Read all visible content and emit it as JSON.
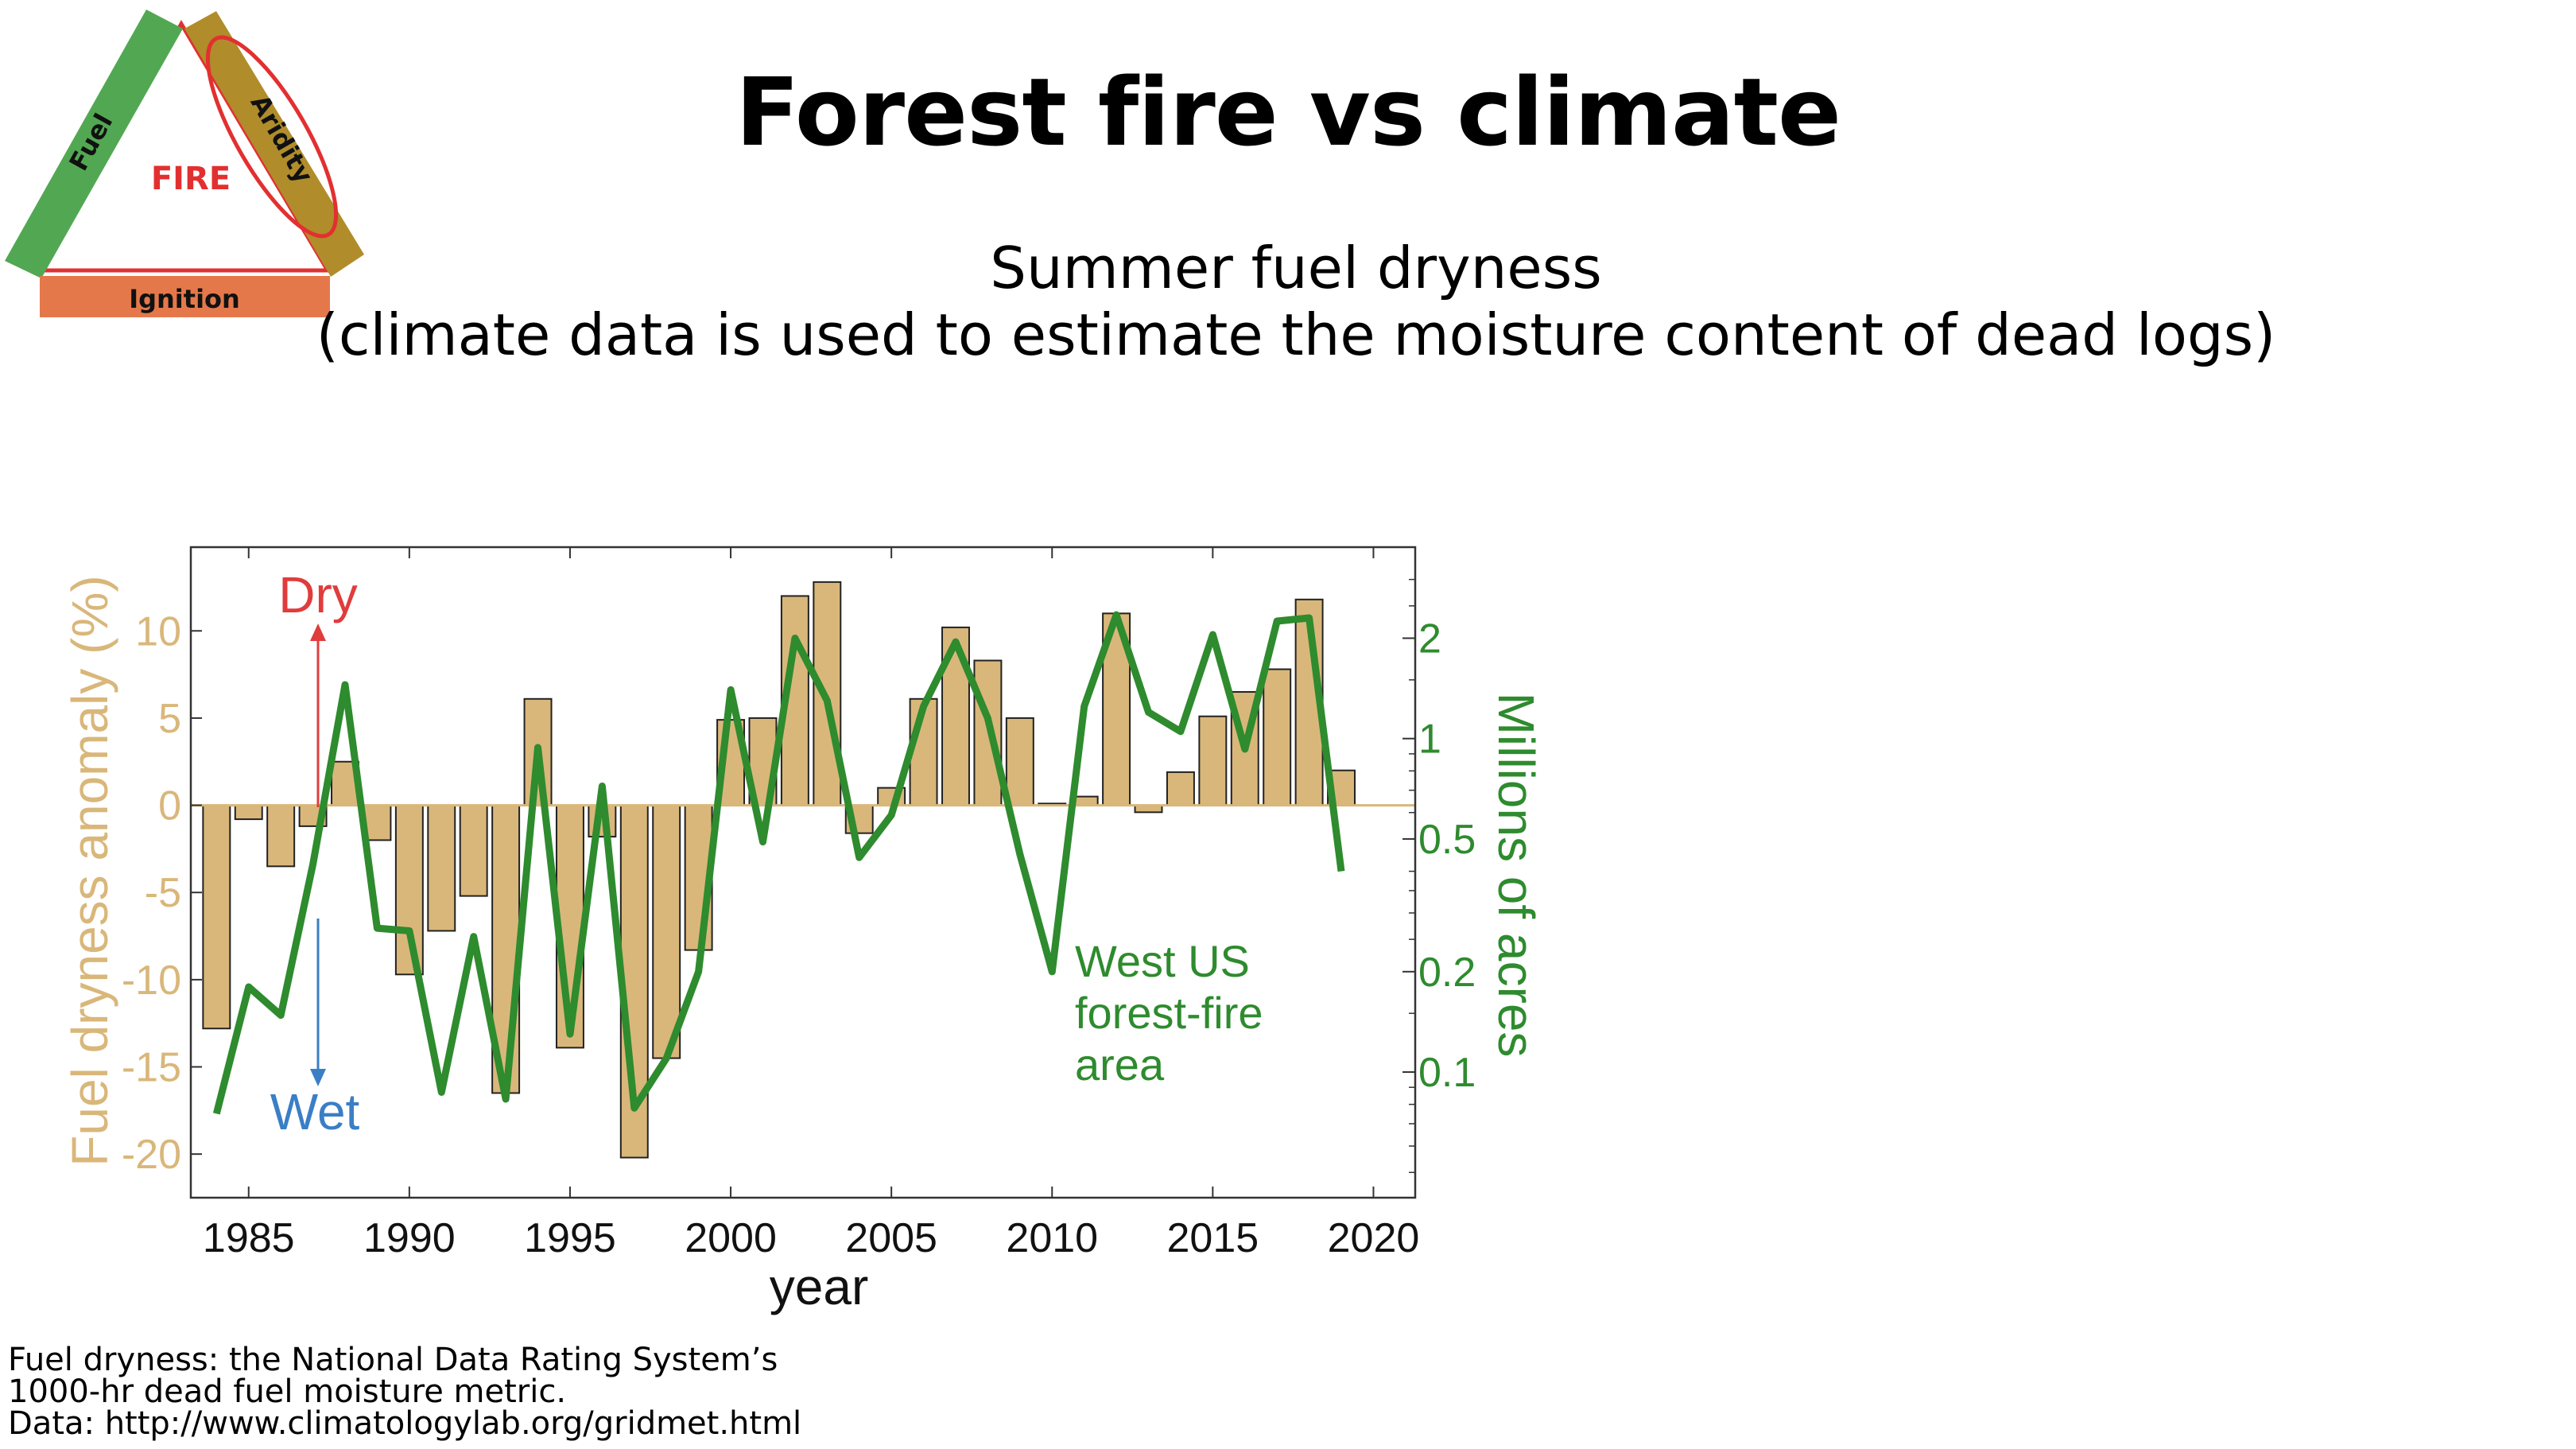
{
  "slide": {
    "title": "Forest fire vs climate",
    "subtitle_line1": "Summer fuel dryness",
    "subtitle_line2": "(climate data is used to estimate the moisture content of dead logs)"
  },
  "fire_triangle": {
    "center_label": "FIRE",
    "left_label": "Fuel",
    "right_label": "Aridity",
    "bottom_label": "Ignition",
    "colors": {
      "fuel": "#52a852",
      "aridity": "#b08d2a",
      "ignition": "#e5784a",
      "fire": "#e23030",
      "circle": "#e23030"
    }
  },
  "annotations": {
    "dry": "Dry",
    "wet": "Wet",
    "fire_area_line1": "West US",
    "fire_area_line2": "forest-fire",
    "fire_area_line3": "area",
    "dry_color": "#e03c3c",
    "wet_color": "#3a7ec6"
  },
  "footnote": {
    "line1": "Fuel dryness: the National Data Rating System’s",
    "line2": "1000-hr dead fuel moisture metric.",
    "line3": "Data: http://www.climatologylab.org/gridmet.html"
  },
  "chart_data": {
    "type": "bar",
    "xlabel": "year",
    "ylabel": "Fuel dryness anomaly (%)",
    "y2label": "Millions of acres",
    "x_ticks": [
      "1985",
      "1990",
      "1995",
      "2000",
      "2005",
      "2010",
      "2015",
      "2020"
    ],
    "y_ticks": [
      "10",
      "5",
      "0",
      "-5",
      "-10",
      "-15",
      "-20"
    ],
    "y2_ticks": [
      "2",
      "1",
      "0.5",
      "0.2",
      "0.1"
    ],
    "xlim": [
      1983.2,
      2021.3
    ],
    "ylim": [
      -22.5,
      14.8
    ],
    "y2lim_log": [
      0.042,
      3.75
    ],
    "y2_scale": "log",
    "bar_color": "#d9b77a",
    "line_color": "#2e8b2e",
    "years": [
      1984,
      1985,
      1986,
      1987,
      1988,
      1989,
      1990,
      1991,
      1992,
      1993,
      1994,
      1995,
      1996,
      1997,
      1998,
      1999,
      2000,
      2001,
      2002,
      2003,
      2004,
      2005,
      2006,
      2007,
      2008,
      2009,
      2010,
      2011,
      2012,
      2013,
      2014,
      2015,
      2016,
      2017,
      2018,
      2019
    ],
    "series": [
      {
        "name": "Fuel dryness anomaly",
        "axis": "left",
        "values": [
          -12.8,
          -0.8,
          -3.5,
          -1.2,
          2.5,
          -2.0,
          -9.7,
          -7.2,
          -5.2,
          -16.5,
          6.1,
          -13.9,
          -1.8,
          -20.2,
          -14.5,
          -8.3,
          4.9,
          5.0,
          12.0,
          12.8,
          -1.6,
          1.0,
          6.1,
          10.2,
          8.3,
          5.0,
          0.1,
          0.5,
          11.0,
          -0.4,
          1.9,
          5.1,
          6.5,
          7.8,
          11.8,
          2.0
        ]
      },
      {
        "name": "West US forest-fire area",
        "axis": "right",
        "values": [
          0.075,
          0.18,
          0.148,
          0.42,
          1.45,
          0.27,
          0.265,
          0.087,
          0.255,
          0.083,
          0.94,
          0.13,
          0.72,
          0.078,
          0.11,
          0.2,
          1.4,
          0.49,
          2.0,
          1.3,
          0.44,
          0.59,
          1.25,
          1.95,
          1.15,
          0.45,
          0.2,
          1.25,
          2.35,
          1.2,
          1.05,
          2.05,
          0.93,
          2.25,
          2.3,
          0.4
        ]
      }
    ]
  }
}
